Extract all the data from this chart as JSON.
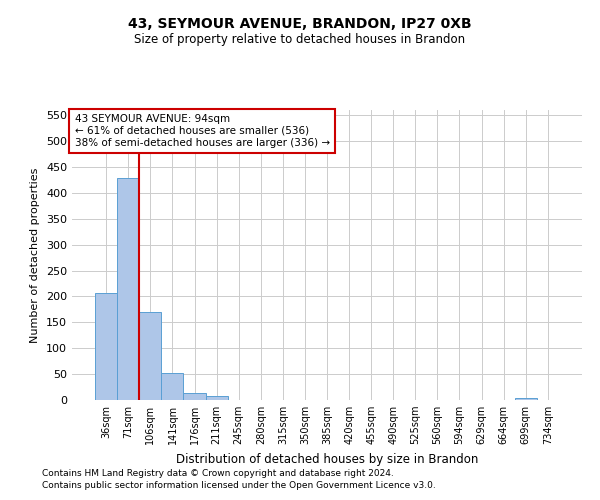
{
  "title_line1": "43, SEYMOUR AVENUE, BRANDON, IP27 0XB",
  "title_line2": "Size of property relative to detached houses in Brandon",
  "xlabel": "Distribution of detached houses by size in Brandon",
  "ylabel": "Number of detached properties",
  "bin_labels": [
    "36sqm",
    "71sqm",
    "106sqm",
    "141sqm",
    "176sqm",
    "211sqm",
    "245sqm",
    "280sqm",
    "315sqm",
    "350sqm",
    "385sqm",
    "420sqm",
    "455sqm",
    "490sqm",
    "525sqm",
    "560sqm",
    "594sqm",
    "629sqm",
    "664sqm",
    "699sqm",
    "734sqm"
  ],
  "bar_values": [
    207,
    428,
    170,
    53,
    13,
    8,
    0,
    0,
    0,
    0,
    0,
    0,
    0,
    0,
    0,
    0,
    0,
    0,
    0,
    4,
    0
  ],
  "bar_color": "#aec6e8",
  "bar_edge_color": "#5a9fd4",
  "ylim": [
    0,
    560
  ],
  "yticks": [
    0,
    50,
    100,
    150,
    200,
    250,
    300,
    350,
    400,
    450,
    500,
    550
  ],
  "red_line_x": 1.5,
  "annotation_box_text_line1": "43 SEYMOUR AVENUE: 94sqm",
  "annotation_box_text_line2": "← 61% of detached houses are smaller (536)",
  "annotation_box_text_line3": "38% of semi-detached houses are larger (336) →",
  "annotation_box_color": "#ffffff",
  "annotation_box_edge_color": "#cc0000",
  "red_line_color": "#cc0000",
  "grid_color": "#cccccc",
  "background_color": "#ffffff",
  "footnote_line1": "Contains HM Land Registry data © Crown copyright and database right 2024.",
  "footnote_line2": "Contains public sector information licensed under the Open Government Licence v3.0."
}
